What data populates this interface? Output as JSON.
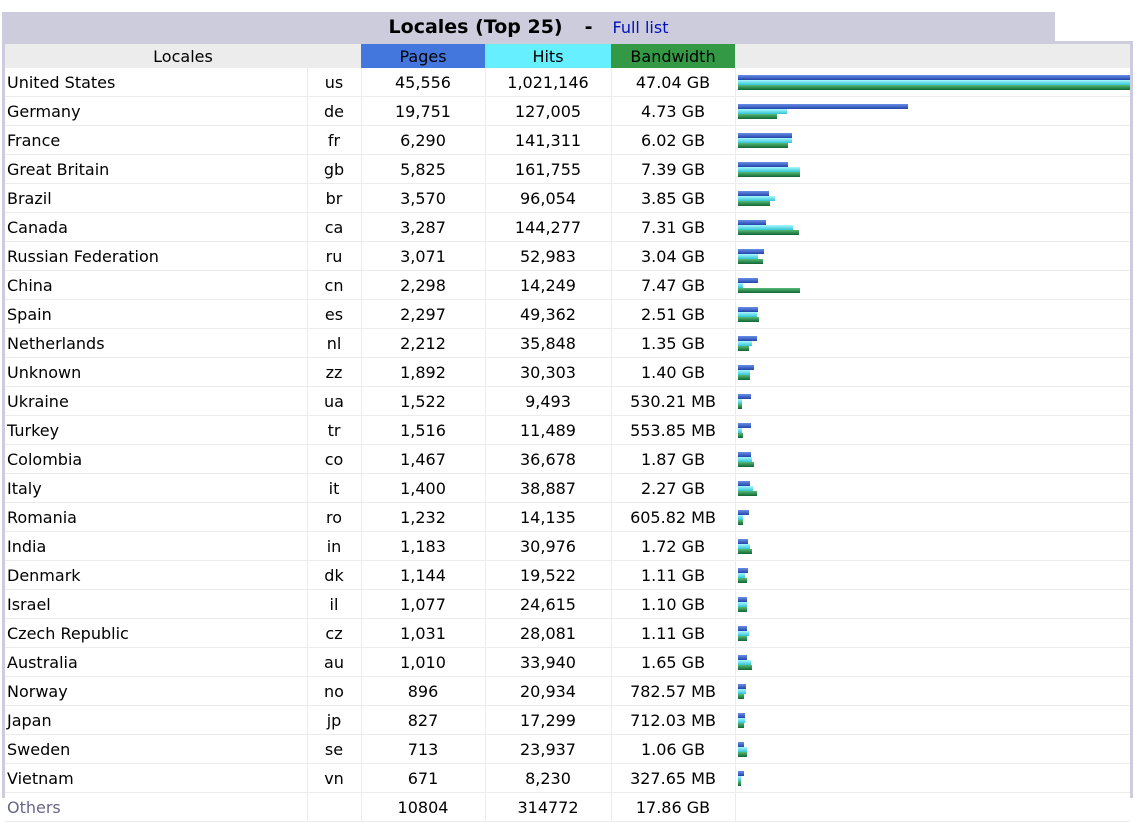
{
  "title": "Locales (Top 25)",
  "separator": "-",
  "full_list_link": "Full list",
  "headers": {
    "locales": "Locales",
    "pages": "Pages",
    "hits": "Hits",
    "bandwidth": "Bandwidth"
  },
  "colors": {
    "pages": "#4477dd",
    "hits": "#66f0ff",
    "bandwidth": "#339944"
  },
  "rows": [
    {
      "name": "United States",
      "code": "us",
      "pages": "45,556",
      "hits": "1,021,146",
      "bandwidth": "47.04 GB",
      "p": 45556,
      "h": 1021146,
      "b": 47.04
    },
    {
      "name": "Germany",
      "code": "de",
      "pages": "19,751",
      "hits": "127,005",
      "bandwidth": "4.73 GB",
      "p": 19751,
      "h": 127005,
      "b": 4.73
    },
    {
      "name": "France",
      "code": "fr",
      "pages": "6,290",
      "hits": "141,311",
      "bandwidth": "6.02 GB",
      "p": 6290,
      "h": 141311,
      "b": 6.02
    },
    {
      "name": "Great Britain",
      "code": "gb",
      "pages": "5,825",
      "hits": "161,755",
      "bandwidth": "7.39 GB",
      "p": 5825,
      "h": 161755,
      "b": 7.39
    },
    {
      "name": "Brazil",
      "code": "br",
      "pages": "3,570",
      "hits": "96,054",
      "bandwidth": "3.85 GB",
      "p": 3570,
      "h": 96054,
      "b": 3.85
    },
    {
      "name": "Canada",
      "code": "ca",
      "pages": "3,287",
      "hits": "144,277",
      "bandwidth": "7.31 GB",
      "p": 3287,
      "h": 144277,
      "b": 7.31
    },
    {
      "name": "Russian Federation",
      "code": "ru",
      "pages": "3,071",
      "hits": "52,983",
      "bandwidth": "3.04 GB",
      "p": 3071,
      "h": 52983,
      "b": 3.04
    },
    {
      "name": "China",
      "code": "cn",
      "pages": "2,298",
      "hits": "14,249",
      "bandwidth": "7.47 GB",
      "p": 2298,
      "h": 14249,
      "b": 7.47
    },
    {
      "name": "Spain",
      "code": "es",
      "pages": "2,297",
      "hits": "49,362",
      "bandwidth": "2.51 GB",
      "p": 2297,
      "h": 49362,
      "b": 2.51
    },
    {
      "name": "Netherlands",
      "code": "nl",
      "pages": "2,212",
      "hits": "35,848",
      "bandwidth": "1.35 GB",
      "p": 2212,
      "h": 35848,
      "b": 1.35
    },
    {
      "name": "Unknown",
      "code": "zz",
      "pages": "1,892",
      "hits": "30,303",
      "bandwidth": "1.40 GB",
      "p": 1892,
      "h": 30303,
      "b": 1.4
    },
    {
      "name": "Ukraine",
      "code": "ua",
      "pages": "1,522",
      "hits": "9,493",
      "bandwidth": "530.21 MB",
      "p": 1522,
      "h": 9493,
      "b": 0.5178
    },
    {
      "name": "Turkey",
      "code": "tr",
      "pages": "1,516",
      "hits": "11,489",
      "bandwidth": "553.85 MB",
      "p": 1516,
      "h": 11489,
      "b": 0.5409
    },
    {
      "name": "Colombia",
      "code": "co",
      "pages": "1,467",
      "hits": "36,678",
      "bandwidth": "1.87 GB",
      "p": 1467,
      "h": 36678,
      "b": 1.87
    },
    {
      "name": "Italy",
      "code": "it",
      "pages": "1,400",
      "hits": "38,887",
      "bandwidth": "2.27 GB",
      "p": 1400,
      "h": 38887,
      "b": 2.27
    },
    {
      "name": "Romania",
      "code": "ro",
      "pages": "1,232",
      "hits": "14,135",
      "bandwidth": "605.82 MB",
      "p": 1232,
      "h": 14135,
      "b": 0.5916
    },
    {
      "name": "India",
      "code": "in",
      "pages": "1,183",
      "hits": "30,976",
      "bandwidth": "1.72 GB",
      "p": 1183,
      "h": 30976,
      "b": 1.72
    },
    {
      "name": "Denmark",
      "code": "dk",
      "pages": "1,144",
      "hits": "19,522",
      "bandwidth": "1.11 GB",
      "p": 1144,
      "h": 19522,
      "b": 1.11
    },
    {
      "name": "Israel",
      "code": "il",
      "pages": "1,077",
      "hits": "24,615",
      "bandwidth": "1.10 GB",
      "p": 1077,
      "h": 24615,
      "b": 1.1
    },
    {
      "name": "Czech Republic",
      "code": "cz",
      "pages": "1,031",
      "hits": "28,081",
      "bandwidth": "1.11 GB",
      "p": 1031,
      "h": 28081,
      "b": 1.11
    },
    {
      "name": "Australia",
      "code": "au",
      "pages": "1,010",
      "hits": "33,940",
      "bandwidth": "1.65 GB",
      "p": 1010,
      "h": 33940,
      "b": 1.65
    },
    {
      "name": "Norway",
      "code": "no",
      "pages": "896",
      "hits": "20,934",
      "bandwidth": "782.57 MB",
      "p": 896,
      "h": 20934,
      "b": 0.7642
    },
    {
      "name": "Japan",
      "code": "jp",
      "pages": "827",
      "hits": "17,299",
      "bandwidth": "712.03 MB",
      "p": 827,
      "h": 17299,
      "b": 0.6953
    },
    {
      "name": "Sweden",
      "code": "se",
      "pages": "713",
      "hits": "23,937",
      "bandwidth": "1.06 GB",
      "p": 713,
      "h": 23937,
      "b": 1.06
    },
    {
      "name": "Vietnam",
      "code": "vn",
      "pages": "671",
      "hits": "8,230",
      "bandwidth": "327.65 MB",
      "p": 671,
      "h": 8230,
      "b": 0.32
    }
  ],
  "others": {
    "name": "Others",
    "code": "",
    "pages": "10804",
    "hits": "314772",
    "bandwidth": "17.86 GB"
  }
}
